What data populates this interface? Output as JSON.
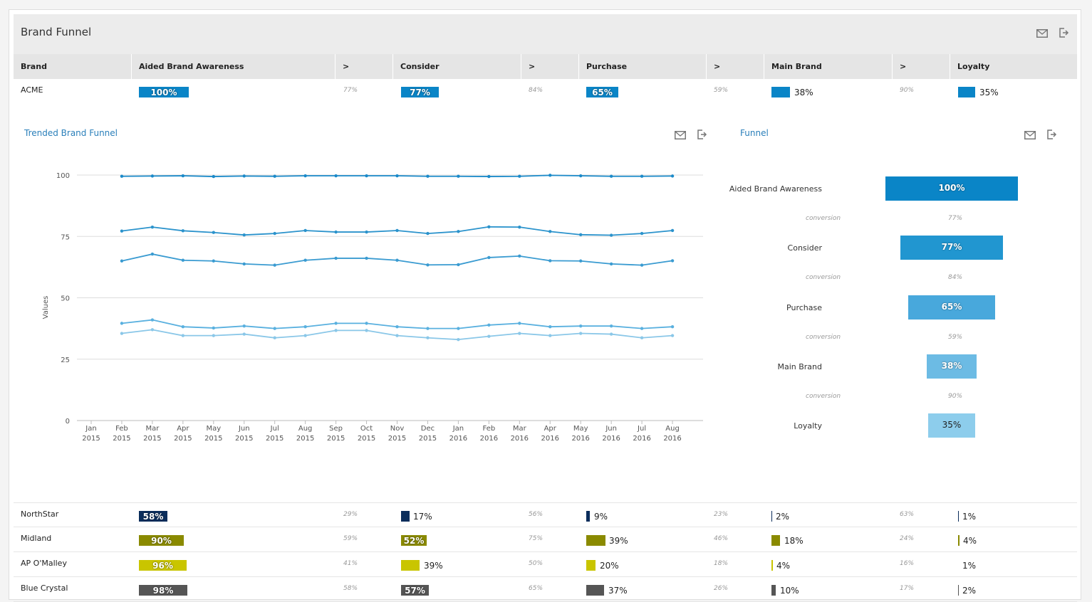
{
  "header": {
    "title": "Brand Funnel"
  },
  "table": {
    "columns": [
      "Brand",
      "Aided Brand Awareness",
      ">",
      "Consider",
      ">",
      "Purchase",
      ">",
      "Main Brand",
      ">",
      "Loyalty"
    ],
    "acme": {
      "brand": "ACME",
      "aided": "100%",
      "aided_conv": "77%",
      "consider": "77%",
      "consider_conv": "84%",
      "purchase": "65%",
      "purchase_conv": "59%",
      "main": "38%",
      "main_conv": "90%",
      "loyalty": "35%"
    },
    "rows": [
      {
        "brand": "NorthStar",
        "aided": "58%",
        "c1": "29%",
        "consider": "17%",
        "c2": "56%",
        "purchase": "9%",
        "c3": "23%",
        "main": "2%",
        "c4": "63%",
        "loyalty": "1%"
      },
      {
        "brand": "Midland",
        "aided": "90%",
        "c1": "59%",
        "consider": "52%",
        "c2": "75%",
        "purchase": "39%",
        "c3": "46%",
        "main": "18%",
        "c4": "24%",
        "loyalty": "4%"
      },
      {
        "brand": "AP O'Malley",
        "aided": "96%",
        "c1": "41%",
        "consider": "39%",
        "c2": "50%",
        "purchase": "20%",
        "c3": "18%",
        "main": "4%",
        "c4": "16%",
        "loyalty": "1%"
      },
      {
        "brand": "Blue Crystal",
        "aided": "98%",
        "c1": "58%",
        "consider": "57%",
        "c2": "65%",
        "purchase": "37%",
        "c3": "26%",
        "main": "10%",
        "c4": "17%",
        "loyalty": "2%"
      }
    ]
  },
  "trend": {
    "title": "Trended Brand Funnel",
    "ylabel": "Values"
  },
  "funnel": {
    "title": "Funnel",
    "stages": [
      {
        "label": "Aided Brand Awareness",
        "value": "100%",
        "pct": 100,
        "color": "#0a85c7"
      },
      {
        "label": "Consider",
        "value": "77%",
        "pct": 77,
        "color": "#2196d0"
      },
      {
        "label": "Purchase",
        "value": "65%",
        "pct": 65,
        "color": "#48a8dc"
      },
      {
        "label": "Main Brand",
        "value": "38%",
        "pct": 38,
        "color": "#6cbbe4"
      },
      {
        "label": "Loyalty",
        "value": "35%",
        "pct": 35,
        "color": "#8dcdec"
      }
    ],
    "conversion_label": "conversion",
    "conversions": [
      "77%",
      "84%",
      "59%",
      "90%"
    ]
  },
  "colors": {
    "acme": "#0a85c7",
    "northstar": "#0b2d5b",
    "midland": "#8a8a00",
    "apomalley": "#c9c500",
    "bluecrystal": "#555555"
  },
  "chart_data": {
    "type": "line",
    "title": "Trended Brand Funnel",
    "ylabel": "Values",
    "xlabel": "",
    "ylim": [
      0,
      100
    ],
    "yticks": [
      0,
      25,
      50,
      75,
      100
    ],
    "x": [
      "Jan 2015",
      "Feb 2015",
      "Mar 2015",
      "Apr 2015",
      "May 2015",
      "Jun 2015",
      "Jul 2015",
      "Aug 2015",
      "Sep 2015",
      "Oct 2015",
      "Nov 2015",
      "Dec 2015",
      "Jan 2016",
      "Feb 2016",
      "Mar 2016",
      "Apr 2016",
      "May 2016",
      "Jun 2016",
      "Jul 2016",
      "Aug 2016"
    ],
    "series": [
      {
        "color": "#1b8ac9",
        "values": [
          null,
          99.5,
          99.6,
          99.7,
          99.4,
          99.6,
          99.5,
          99.7,
          99.7,
          99.7,
          99.7,
          99.5,
          99.5,
          99.4,
          99.5,
          99.9,
          99.7,
          99.5,
          99.5,
          99.6
        ]
      },
      {
        "color": "#2b93cc",
        "values": [
          null,
          77.2,
          78.8,
          77.3,
          76.6,
          75.6,
          76.2,
          77.4,
          76.8,
          76.8,
          77.4,
          76.2,
          77.0,
          78.9,
          78.8,
          77.0,
          75.7,
          75.5,
          76.2,
          77.4
        ]
      },
      {
        "color": "#3a9bd1",
        "values": [
          null,
          65.0,
          67.8,
          65.3,
          65.0,
          63.8,
          63.3,
          65.3,
          66.1,
          66.1,
          65.3,
          63.4,
          63.5,
          66.4,
          67.0,
          65.1,
          65.0,
          63.8,
          63.3,
          65.1
        ]
      },
      {
        "color": "#59b0df",
        "values": [
          null,
          39.6,
          41.0,
          38.2,
          37.7,
          38.5,
          37.5,
          38.2,
          39.6,
          39.6,
          38.2,
          37.5,
          37.5,
          38.9,
          39.6,
          38.2,
          38.5,
          38.5,
          37.5,
          38.2
        ]
      },
      {
        "color": "#8ac7e8",
        "values": [
          null,
          35.5,
          37.0,
          34.6,
          34.6,
          35.2,
          33.7,
          34.6,
          36.7,
          36.7,
          34.6,
          33.7,
          33.0,
          34.3,
          35.5,
          34.6,
          35.5,
          35.2,
          33.7,
          34.6
        ]
      }
    ]
  }
}
